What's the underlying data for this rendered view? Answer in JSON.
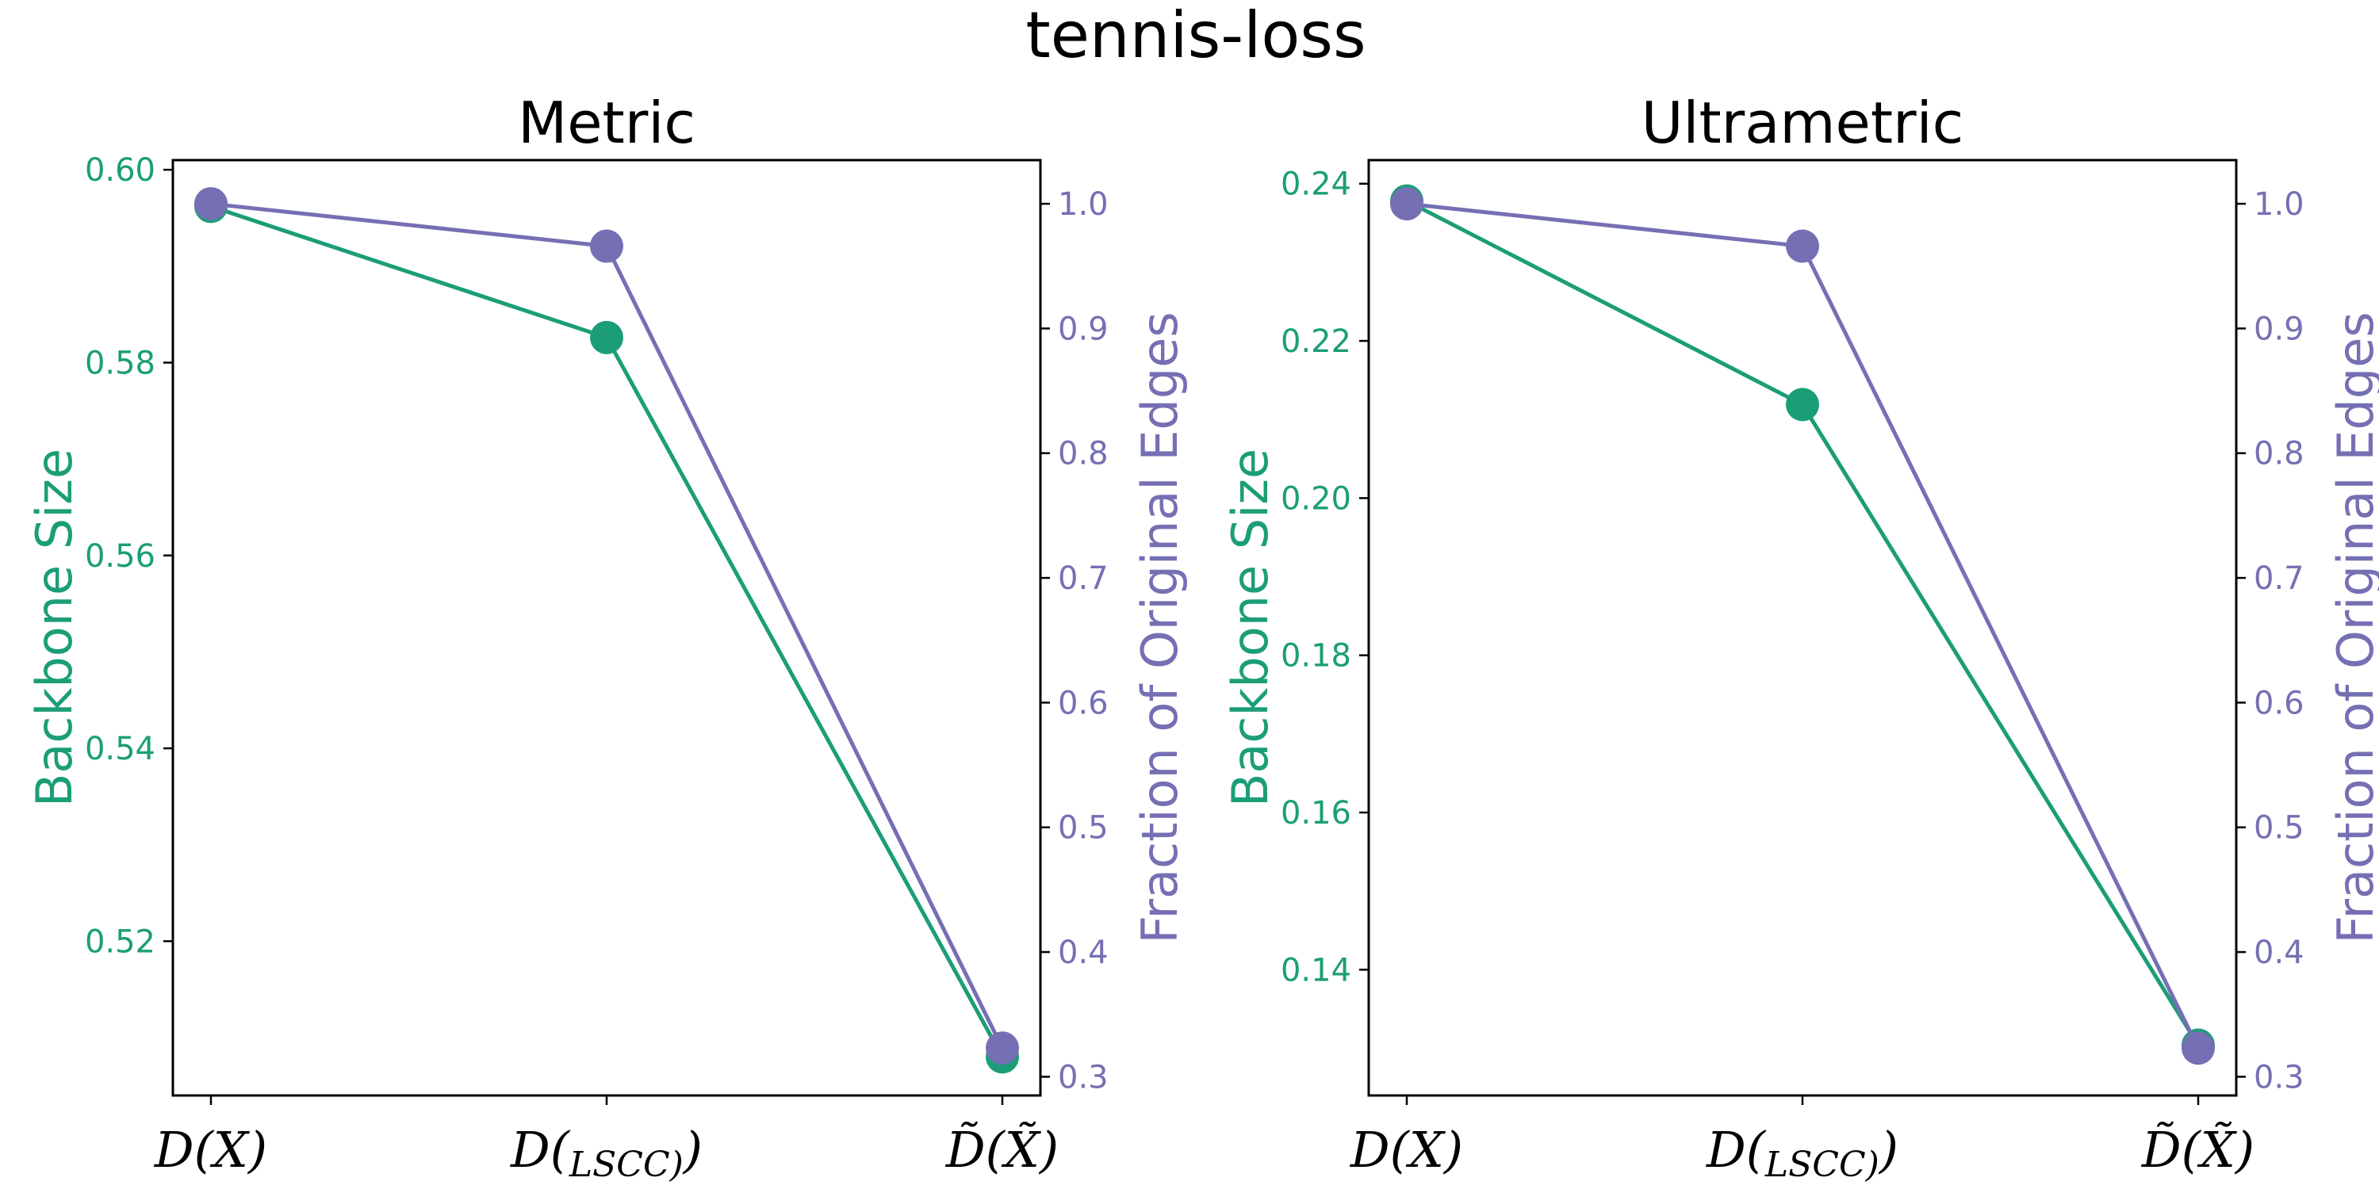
{
  "suptitle": "tennis-loss",
  "colors": {
    "left_axis": "#1b9e77",
    "right_axis": "#7570b3",
    "frame": "#000000"
  },
  "chart_data": [
    {
      "type": "line",
      "title": "Metric",
      "categories": [
        "D(X)",
        "D(X_LSCC)",
        "D̃(X̃)"
      ],
      "ylabel_left": "Backbone Size",
      "ylabel_right": "Fraction of Original Edges",
      "ylim_left": [
        0.504,
        0.601
      ],
      "ylim_right": [
        0.285,
        1.035
      ],
      "yticks_left": [
        "0.52",
        "0.54",
        "0.56",
        "0.58",
        "0.60"
      ],
      "yticks_right": [
        "0.3",
        "0.4",
        "0.5",
        "0.6",
        "0.7",
        "0.8",
        "0.9",
        "1.0"
      ],
      "series": [
        {
          "axis": "left",
          "color": "#1b9e77",
          "values": [
            0.5962,
            0.5826,
            0.508
          ]
        },
        {
          "axis": "right",
          "color": "#7570b3",
          "values": [
            1.0,
            0.966,
            0.323
          ]
        }
      ]
    },
    {
      "type": "line",
      "title": "Ultrametric",
      "categories": [
        "D(X)",
        "D(X_LSCC)",
        "D̃(X̃)"
      ],
      "ylabel_left": "Backbone Size",
      "ylabel_right": "Fraction of Original Edges",
      "ylim_left": [
        0.124,
        0.243
      ],
      "ylim_right": [
        0.285,
        1.035
      ],
      "yticks_left": [
        "0.14",
        "0.16",
        "0.18",
        "0.20",
        "0.22",
        "0.24"
      ],
      "yticks_right": [
        "0.3",
        "0.4",
        "0.5",
        "0.6",
        "0.7",
        "0.8",
        "0.9",
        "1.0"
      ],
      "series": [
        {
          "axis": "left",
          "color": "#1b9e77",
          "values": [
            0.2378,
            0.2119,
            0.1304
          ]
        },
        {
          "axis": "right",
          "color": "#7570b3",
          "values": [
            1.0,
            0.966,
            0.323
          ]
        }
      ]
    }
  ]
}
